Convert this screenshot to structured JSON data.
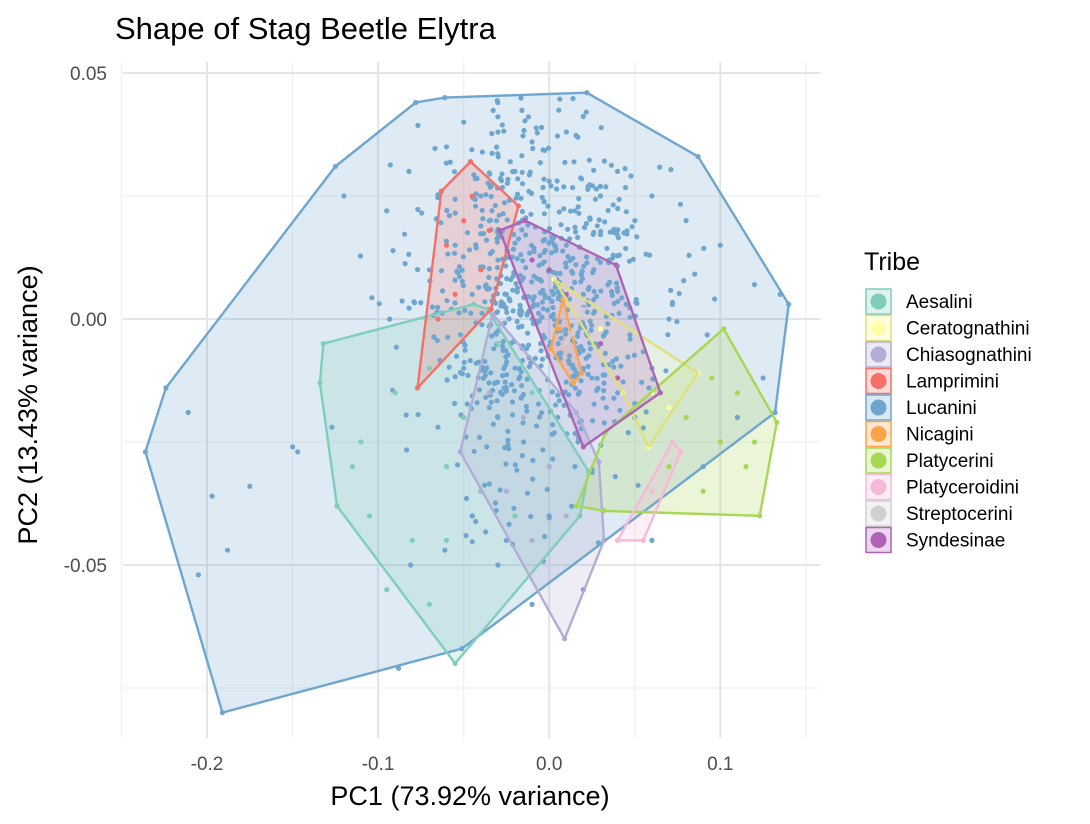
{
  "chart_data": {
    "type": "scatter",
    "title": "Shape of Stag Beetle Elytra",
    "xlabel": "PC1 (73.92% variance)",
    "ylabel": "PC2 (13.43% variance)",
    "xlim": [
      -0.25,
      0.15
    ],
    "ylim": [
      -0.085,
      0.052
    ],
    "x_ticks": [
      -0.2,
      -0.1,
      0.0,
      0.1
    ],
    "x_tick_labels": [
      "-0.2",
      "-0.1",
      "0.0",
      "0.1"
    ],
    "y_ticks": [
      -0.05,
      0.0,
      0.05
    ],
    "y_tick_labels": [
      "-0.05",
      "0.00",
      "0.05"
    ],
    "grid": true,
    "legend_position": "right",
    "legend": {
      "title": "Tribe",
      "entries": [
        "Aesalini",
        "Ceratognathini",
        "Chiasognathini",
        "Lamprimini",
        "Lucanini",
        "Nicagini",
        "Platycerini",
        "Platyceroidini",
        "Streptocerini",
        "Syndesinae"
      ]
    },
    "series": [
      {
        "name": "Lucanini",
        "color": "#6FA6CF",
        "hull": [
          [
            -0.191,
            -0.08
          ],
          [
            -0.236,
            -0.027
          ],
          [
            -0.224,
            -0.014
          ],
          [
            -0.125,
            0.031
          ],
          [
            -0.078,
            0.044
          ],
          [
            -0.061,
            0.045
          ],
          [
            0.022,
            0.046
          ],
          [
            0.087,
            0.033
          ],
          [
            0.14,
            0.003
          ],
          [
            0.132,
            -0.019
          ],
          [
            -0.051,
            -0.067
          ],
          [
            -0.191,
            -0.08
          ]
        ],
        "points": [
          [
            -0.191,
            -0.08
          ],
          [
            -0.236,
            -0.027
          ],
          [
            -0.224,
            -0.014
          ],
          [
            -0.125,
            0.031
          ],
          [
            -0.078,
            0.044
          ],
          [
            -0.061,
            0.045
          ],
          [
            0.022,
            0.046
          ],
          [
            0.087,
            0.033
          ],
          [
            0.14,
            0.003
          ],
          [
            0.132,
            -0.019
          ],
          [
            -0.051,
            -0.067
          ],
          [
            -0.205,
            -0.052
          ],
          [
            -0.211,
            -0.019
          ],
          [
            -0.197,
            -0.036
          ],
          [
            -0.188,
            -0.047
          ],
          [
            -0.15,
            -0.026
          ],
          [
            -0.147,
            -0.027
          ],
          [
            -0.175,
            -0.034
          ],
          [
            -0.127,
            -0.022
          ],
          [
            -0.088,
            -0.071
          ],
          [
            -0.081,
            -0.05
          ],
          [
            -0.061,
            -0.047
          ],
          [
            -0.12,
            0.025
          ],
          [
            -0.095,
            0.022
          ],
          [
            -0.07,
            0.01
          ],
          [
            -0.082,
            0.03
          ],
          [
            -0.06,
            0.035
          ],
          [
            -0.05,
            0.04
          ],
          [
            -0.03,
            0.038
          ],
          [
            -0.01,
            0.036
          ],
          [
            0.01,
            0.038
          ],
          [
            0.04,
            0.03
          ],
          [
            0.06,
            0.025
          ],
          [
            0.08,
            0.02
          ],
          [
            0.1,
            0.015
          ],
          [
            0.12,
            0.007
          ],
          [
            0.135,
            0.005
          ],
          [
            0.125,
            -0.012
          ],
          [
            0.11,
            -0.02
          ],
          [
            0.09,
            -0.03
          ],
          [
            0.06,
            -0.045
          ],
          [
            0.02,
            -0.055
          ],
          [
            -0.01,
            -0.058
          ],
          [
            -0.03,
            -0.05
          ],
          [
            -0.04,
            -0.035
          ],
          [
            -0.03,
            -0.02
          ],
          [
            -0.02,
            -0.01
          ],
          [
            -0.01,
            0.0
          ],
          [
            0.0,
            0.01
          ],
          [
            0.01,
            0.015
          ],
          [
            0.02,
            0.005
          ],
          [
            0.03,
            -0.005
          ],
          [
            0.04,
            -0.015
          ],
          [
            0.05,
            -0.02
          ],
          [
            0.06,
            -0.01
          ],
          [
            0.07,
            0.0
          ],
          [
            0.05,
            0.02
          ],
          [
            0.03,
            0.025
          ],
          [
            0.0,
            0.028
          ],
          [
            -0.02,
            0.03
          ],
          [
            -0.04,
            0.025
          ],
          [
            -0.055,
            0.015
          ],
          [
            -0.045,
            0.005
          ],
          [
            -0.03,
            0.012
          ],
          [
            -0.015,
            0.02
          ],
          [
            0.015,
            0.022
          ],
          [
            0.035,
            0.012
          ],
          [
            0.045,
            0.003
          ],
          [
            0.025,
            -0.012
          ],
          [
            0.005,
            -0.02
          ],
          [
            -0.015,
            -0.025
          ],
          [
            -0.035,
            -0.018
          ],
          [
            -0.05,
            -0.01
          ],
          [
            -0.065,
            -0.022
          ],
          [
            -0.045,
            -0.04
          ],
          [
            -0.025,
            -0.045
          ],
          [
            0.0,
            -0.04
          ],
          [
            0.015,
            -0.03
          ],
          [
            -0.005,
            -0.005
          ],
          [
            -0.025,
            0.005
          ]
        ],
        "scatter_cloud": {
          "n": 760,
          "center": [
            -0.005,
            0.005
          ],
          "sd": [
            0.035,
            0.02
          ],
          "seed": 11
        }
      },
      {
        "name": "Aesalini",
        "color": "#7FCDBB",
        "hull": [
          [
            -0.055,
            -0.07
          ],
          [
            -0.124,
            -0.038
          ],
          [
            -0.134,
            -0.013
          ],
          [
            -0.132,
            -0.005
          ],
          [
            -0.044,
            0.003
          ],
          [
            -0.036,
            0.002
          ],
          [
            0.023,
            -0.031
          ],
          [
            0.018,
            -0.04
          ],
          [
            -0.055,
            -0.07
          ]
        ],
        "points": [
          [
            -0.055,
            -0.07
          ],
          [
            -0.124,
            -0.038
          ],
          [
            -0.134,
            -0.013
          ],
          [
            -0.132,
            -0.005
          ],
          [
            -0.044,
            0.003
          ],
          [
            -0.036,
            0.002
          ],
          [
            0.023,
            -0.031
          ],
          [
            0.018,
            -0.04
          ],
          [
            -0.07,
            -0.058
          ],
          [
            -0.095,
            -0.055
          ],
          [
            -0.105,
            -0.04
          ],
          [
            -0.11,
            -0.025
          ],
          [
            -0.09,
            -0.015
          ],
          [
            -0.07,
            -0.01
          ],
          [
            -0.05,
            -0.02
          ],
          [
            -0.04,
            -0.035
          ],
          [
            -0.02,
            -0.04
          ],
          [
            0.0,
            -0.03
          ],
          [
            -0.01,
            -0.015
          ],
          [
            -0.03,
            -0.005
          ],
          [
            -0.06,
            -0.03
          ],
          [
            -0.08,
            -0.045
          ],
          [
            -0.06,
            -0.045
          ],
          [
            -0.115,
            -0.03
          ]
        ]
      },
      {
        "name": "Chiasognathini",
        "color": "#B3ACD6",
        "hull": [
          [
            0.009,
            -0.065
          ],
          [
            -0.052,
            -0.027
          ],
          [
            -0.033,
            0.001
          ],
          [
            -0.028,
            -0.001
          ],
          [
            0.016,
            -0.019
          ],
          [
            0.029,
            -0.029
          ],
          [
            0.032,
            -0.045
          ],
          [
            0.009,
            -0.065
          ]
        ],
        "points": [
          [
            0.009,
            -0.065
          ],
          [
            -0.052,
            -0.027
          ],
          [
            -0.033,
            0.001
          ],
          [
            -0.028,
            -0.001
          ],
          [
            0.016,
            -0.019
          ],
          [
            0.029,
            -0.029
          ],
          [
            0.032,
            -0.045
          ],
          [
            -0.01,
            -0.045
          ],
          [
            -0.025,
            -0.035
          ],
          [
            -0.035,
            -0.015
          ],
          [
            0.0,
            -0.03
          ],
          [
            0.01,
            -0.04
          ],
          [
            -0.015,
            -0.02
          ]
        ]
      },
      {
        "name": "Lamprimini",
        "color": "#F47068",
        "hull": [
          [
            -0.077,
            -0.014
          ],
          [
            -0.063,
            0.026
          ],
          [
            -0.046,
            0.032
          ],
          [
            -0.018,
            0.023
          ],
          [
            -0.034,
            0.002
          ],
          [
            -0.077,
            -0.014
          ]
        ],
        "points": [
          [
            -0.077,
            -0.014
          ],
          [
            -0.063,
            0.026
          ],
          [
            -0.046,
            0.032
          ],
          [
            -0.018,
            0.023
          ],
          [
            -0.034,
            0.002
          ],
          [
            -0.06,
            0.015
          ],
          [
            -0.05,
            0.02
          ],
          [
            -0.055,
            0.005
          ],
          [
            -0.04,
            0.01
          ],
          [
            -0.065,
            0.0
          ],
          [
            -0.035,
            0.018
          ],
          [
            -0.045,
            0.025
          ]
        ]
      },
      {
        "name": "Nicagini",
        "color": "#FCA44C",
        "hull": [
          [
            0.014,
            -0.013
          ],
          [
            0.001,
            -0.006
          ],
          [
            0.008,
            0.004
          ],
          [
            0.019,
            -0.011
          ],
          [
            0.014,
            -0.013
          ]
        ],
        "points": [
          [
            0.014,
            -0.013
          ],
          [
            0.001,
            -0.006
          ],
          [
            0.008,
            0.004
          ],
          [
            0.019,
            -0.011
          ],
          [
            0.01,
            -0.005
          ],
          [
            0.006,
            -0.002
          ]
        ]
      },
      {
        "name": "Ceratognathini",
        "color": "#FFFFA8",
        "stroke": "#E0E07A",
        "hull": [
          [
            0.058,
            -0.026
          ],
          [
            0.043,
            -0.015
          ],
          [
            0.003,
            0.008
          ],
          [
            0.087,
            -0.011
          ],
          [
            0.058,
            -0.026
          ]
        ],
        "points": [
          [
            0.058,
            -0.026
          ],
          [
            0.043,
            -0.015
          ],
          [
            0.003,
            0.008
          ],
          [
            0.087,
            -0.011
          ],
          [
            0.06,
            -0.015
          ],
          [
            0.03,
            -0.002
          ],
          [
            0.07,
            -0.018
          ]
        ]
      },
      {
        "name": "Platycerini",
        "color": "#A6D854",
        "hull": [
          [
            0.016,
            -0.038
          ],
          [
            0.033,
            -0.023
          ],
          [
            0.102,
            -0.002
          ],
          [
            0.133,
            -0.021
          ],
          [
            0.123,
            -0.04
          ],
          [
            0.032,
            -0.039
          ],
          [
            0.016,
            -0.038
          ]
        ],
        "points": [
          [
            0.016,
            -0.038
          ],
          [
            0.033,
            -0.023
          ],
          [
            0.102,
            -0.002
          ],
          [
            0.133,
            -0.021
          ],
          [
            0.123,
            -0.04
          ],
          [
            0.032,
            -0.039
          ],
          [
            0.08,
            -0.02
          ],
          [
            0.1,
            -0.025
          ],
          [
            0.115,
            -0.03
          ],
          [
            0.09,
            -0.035
          ],
          [
            0.07,
            -0.03
          ],
          [
            0.11,
            -0.015
          ],
          [
            0.12,
            -0.025
          ],
          [
            0.095,
            -0.012
          ],
          [
            0.06,
            -0.035
          ]
        ]
      },
      {
        "name": "Platyceroidini",
        "color": "#F8B8D8",
        "hull": [
          [
            0.04,
            -0.045
          ],
          [
            0.072,
            -0.025
          ],
          [
            0.077,
            -0.027
          ],
          [
            0.055,
            -0.045
          ],
          [
            0.04,
            -0.045
          ]
        ],
        "points": [
          [
            0.04,
            -0.045
          ],
          [
            0.072,
            -0.025
          ],
          [
            0.077,
            -0.027
          ],
          [
            0.055,
            -0.045
          ],
          [
            0.06,
            -0.035
          ]
        ]
      },
      {
        "name": "Streptocerini",
        "color": "#D0D0D0",
        "hull": [
          [
            0.01,
            -0.005
          ],
          [
            0.02,
            0.002
          ],
          [
            0.015,
            -0.002
          ],
          [
            0.01,
            -0.005
          ]
        ],
        "points": [
          [
            0.01,
            -0.005
          ],
          [
            0.02,
            0.002
          ],
          [
            0.015,
            -0.002
          ]
        ]
      },
      {
        "name": "Syndesinae",
        "color": "#AE63B5",
        "hull": [
          [
            -0.029,
            0.018
          ],
          [
            -0.014,
            0.02
          ],
          [
            0.039,
            0.011
          ],
          [
            0.065,
            -0.015
          ],
          [
            0.02,
            -0.026
          ],
          [
            -0.029,
            0.018
          ]
        ],
        "points": [
          [
            -0.029,
            0.018
          ],
          [
            -0.014,
            0.02
          ],
          [
            0.039,
            0.011
          ],
          [
            0.065,
            -0.015
          ],
          [
            0.02,
            -0.026
          ],
          [
            0.01,
            0.005
          ],
          [
            0.03,
            -0.005
          ],
          [
            0.0,
            0.01
          ],
          [
            0.04,
            -0.012
          ],
          [
            -0.01,
            0.012
          ]
        ]
      }
    ]
  }
}
